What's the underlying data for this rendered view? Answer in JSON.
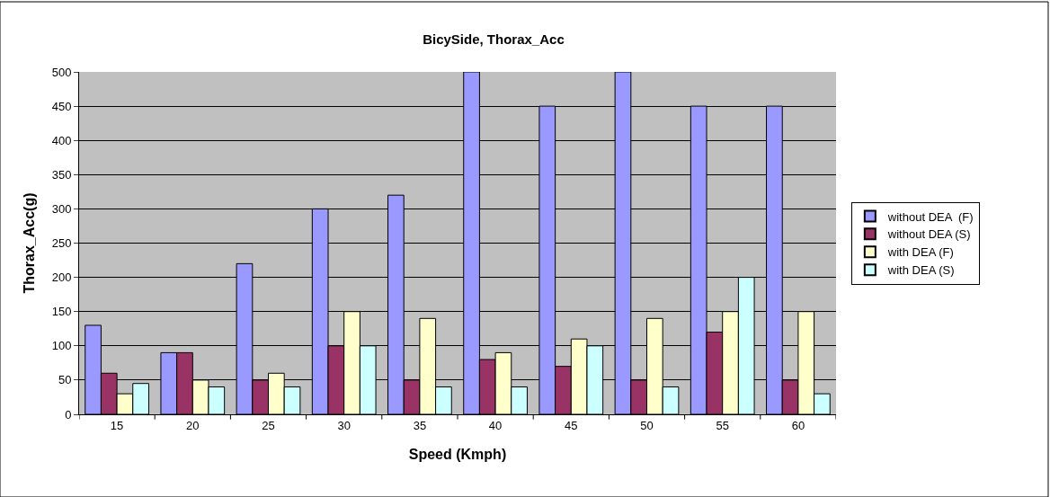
{
  "chart_data": {
    "type": "bar",
    "title": "BicySide, Thorax_Acc",
    "xlabel": "Speed (Kmph)",
    "ylabel": "Thorax_Acc(g)",
    "categories": [
      "15",
      "20",
      "25",
      "30",
      "35",
      "40",
      "45",
      "50",
      "55",
      "60"
    ],
    "series": [
      {
        "name": "without DEA  (F)",
        "color": "#9999ff",
        "values": [
          130,
          90,
          220,
          300,
          320,
          500,
          450,
          500,
          450,
          450
        ]
      },
      {
        "name": "without DEA (S)",
        "color": "#993366",
        "values": [
          60,
          90,
          50,
          100,
          50,
          80,
          70,
          50,
          120,
          50
        ]
      },
      {
        "name": "with DEA (F)",
        "color": "#ffffcc",
        "values": [
          30,
          50,
          60,
          150,
          140,
          90,
          110,
          140,
          150,
          150
        ]
      },
      {
        "name": "with DEA (S)",
        "color": "#ccffff",
        "values": [
          45,
          40,
          40,
          100,
          40,
          40,
          100,
          40,
          200,
          30
        ]
      }
    ],
    "ylim": [
      0,
      500
    ],
    "yticks": [
      0,
      50,
      100,
      150,
      200,
      250,
      300,
      350,
      400,
      450,
      500
    ],
    "grid": "y",
    "legend": "right"
  }
}
